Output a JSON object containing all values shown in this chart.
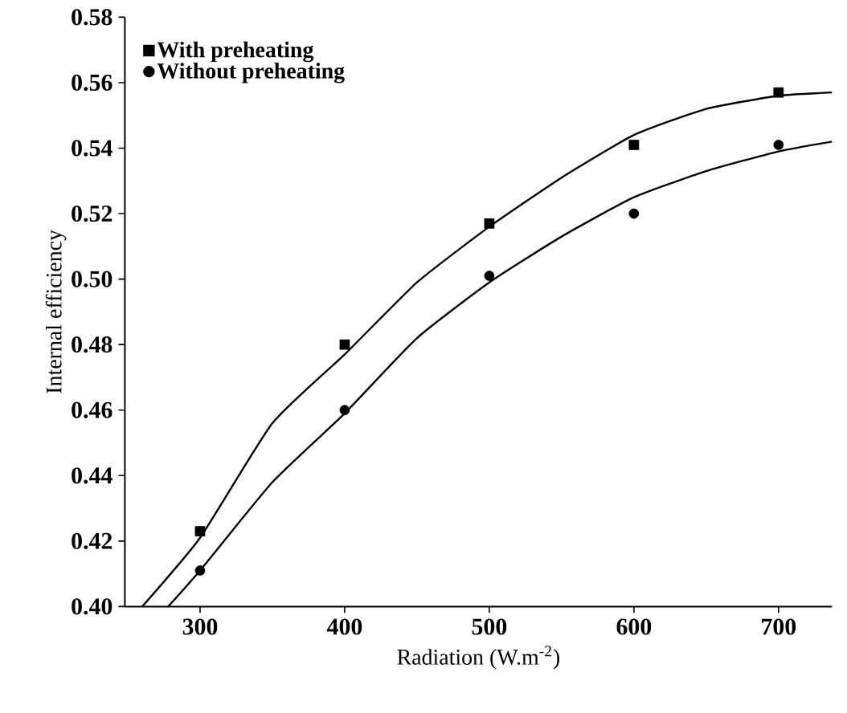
{
  "chart_data": {
    "type": "scatter",
    "xlabel": "Radiation (W.m$^{-2}$)",
    "ylabel": "Internal efficiency",
    "xlim": [
      248,
      737
    ],
    "ylim": [
      0.4,
      0.58
    ],
    "xticks": [
      300,
      400,
      500,
      600,
      700
    ],
    "yticks": [
      {
        "value": 0.4,
        "label": "0.40"
      },
      0.42,
      0.44,
      0.46,
      0.48,
      {
        "value": 0.5,
        "label": "0.50"
      },
      0.52,
      0.54,
      0.56,
      0.58
    ],
    "legend": "top left",
    "series": [
      {
        "name": "With preheating",
        "color": "#000000",
        "marker": "square",
        "x": [
          300,
          400,
          500,
          600,
          700
        ],
        "values": [
          0.423,
          0.48,
          0.517,
          0.541,
          0.557
        ]
      },
      {
        "name": "Without preheating",
        "color": "#000000",
        "marker": "circle",
        "x": [
          300,
          400,
          500,
          600,
          700
        ],
        "values": [
          0.411,
          0.46,
          0.501,
          0.52,
          0.541
        ]
      },
      {
        "type": "line",
        "color": "#000000",
        "marker": "none",
        "x": [
          260,
          300,
          350,
          400,
          450,
          500,
          550,
          600,
          650,
          700,
          737
        ],
        "values": [
          0.4,
          0.421,
          0.456,
          0.477,
          0.499,
          0.516,
          0.531,
          0.544,
          0.552,
          0.556,
          0.557
        ]
      },
      {
        "type": "line",
        "color": "#000000",
        "marker": "none",
        "x": [
          278,
          300,
          350,
          400,
          450,
          500,
          550,
          600,
          650,
          700,
          737
        ],
        "values": [
          0.4,
          0.411,
          0.438,
          0.459,
          0.482,
          0.499,
          0.513,
          0.525,
          0.533,
          0.539,
          0.542
        ]
      }
    ]
  }
}
